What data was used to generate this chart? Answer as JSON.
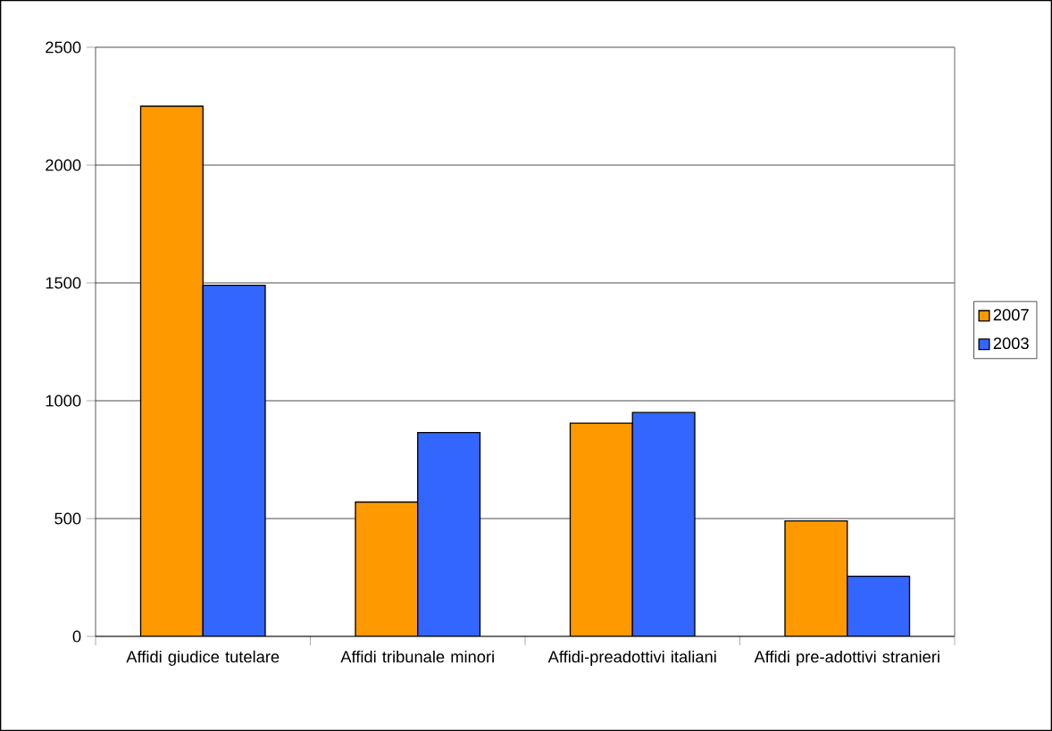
{
  "chart_data": {
    "type": "bar",
    "categories": [
      "Affidi giudice tutelare",
      "Affidi tribunale minori",
      "Affidi-preadottivi italiani",
      "Affidi pre-adottivi stranieri"
    ],
    "series": [
      {
        "name": "2007",
        "color": "#ff9900",
        "values": [
          2250,
          570,
          905,
          490
        ]
      },
      {
        "name": "2003",
        "color": "#3366ff",
        "values": [
          1490,
          865,
          950,
          255
        ]
      }
    ],
    "ylim": [
      0,
      2500
    ],
    "yticks": [
      0,
      500,
      1000,
      1500,
      2000,
      2500
    ],
    "grid": "y",
    "legend": "right"
  }
}
